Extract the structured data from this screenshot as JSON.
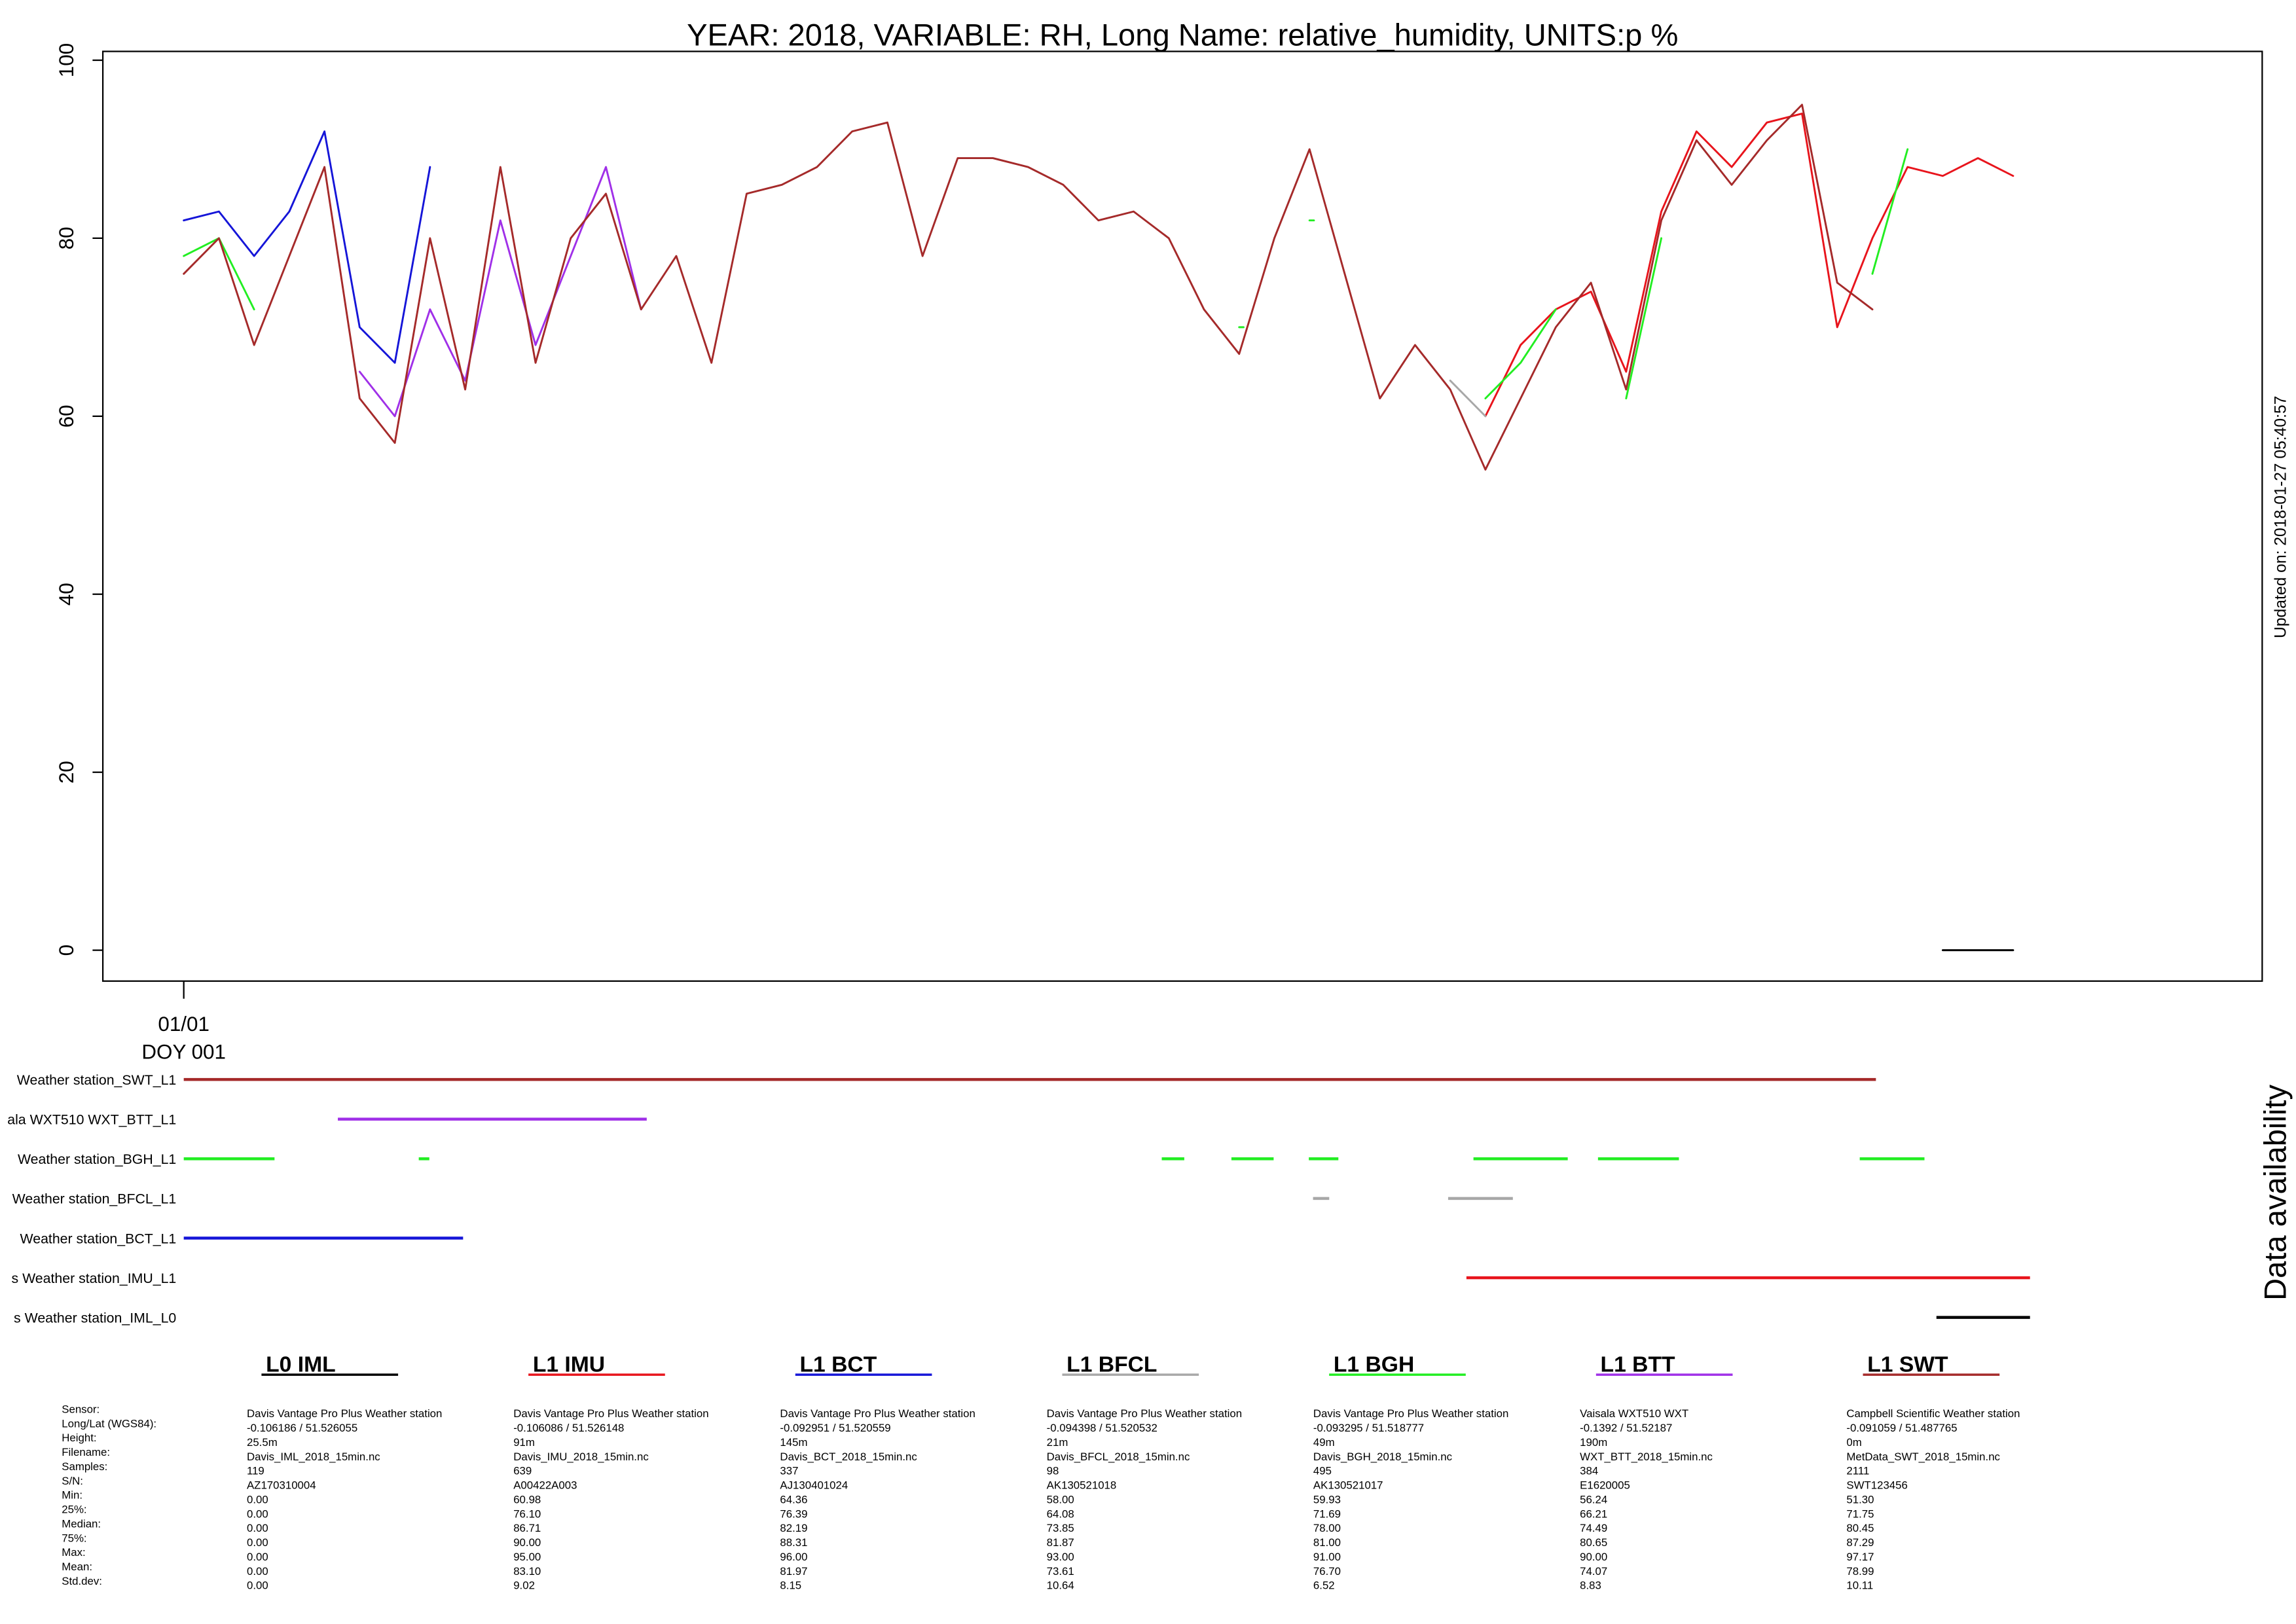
{
  "chart_data": [
    {
      "type": "line",
      "title": "YEAR: 2018, VARIABLE: RH, Long Name: relative_humidity, UNITS:p %",
      "side_note": "Updated on: 2018-01-27 05:40:57",
      "xlim": [
        -0.15,
        30.54
      ],
      "ylim": [
        -3.47,
        100.99
      ],
      "xticks": [
        {
          "value": 1,
          "label": "01/01",
          "sublabel": "DOY 001"
        }
      ],
      "yticks": [
        0,
        20,
        40,
        60,
        80,
        100
      ],
      "x": [
        1,
        1.5,
        2,
        2.5,
        3,
        3.5,
        4,
        4.5,
        5,
        5.5,
        6,
        6.5,
        7,
        7.5,
        8,
        8.5,
        9,
        9.5,
        10,
        10.5,
        11,
        11.5,
        12,
        12.5,
        13,
        13.5,
        14,
        14.5,
        15,
        15.5,
        16,
        16.5,
        17,
        17.5,
        18,
        18.5,
        19,
        19.5,
        20,
        20.5,
        21,
        21.5,
        22,
        22.5,
        23,
        23.5,
        24,
        24.5,
        25,
        25.5,
        26,
        26.5,
        27
      ],
      "series": [
        {
          "name": "L0 IML",
          "color": "#000000",
          "values": [
            null,
            null,
            null,
            null,
            null,
            null,
            null,
            null,
            null,
            null,
            null,
            null,
            null,
            null,
            null,
            null,
            null,
            null,
            null,
            null,
            null,
            null,
            null,
            null,
            null,
            null,
            null,
            null,
            null,
            null,
            null,
            null,
            null,
            null,
            null,
            null,
            null,
            null,
            null,
            null,
            null,
            null,
            null,
            null,
            null,
            null,
            null,
            null,
            null,
            null,
            0,
            0,
            0
          ]
        },
        {
          "name": "L1 IMU",
          "color": "#e8141c",
          "values": [
            null,
            null,
            null,
            null,
            null,
            null,
            null,
            null,
            null,
            null,
            null,
            null,
            null,
            null,
            null,
            null,
            null,
            null,
            null,
            null,
            null,
            null,
            null,
            null,
            null,
            null,
            null,
            null,
            null,
            null,
            null,
            null,
            null,
            null,
            null,
            null,
            null,
            60,
            68,
            72,
            74,
            65,
            83,
            92,
            88,
            93,
            94,
            70,
            80,
            88,
            87,
            89,
            87
          ]
        },
        {
          "name": "L1 BCT",
          "color": "#1515d8",
          "values": [
            82,
            83,
            78,
            83,
            92,
            70,
            66,
            88,
            null,
            null,
            null,
            null,
            null,
            null,
            null,
            null,
            null,
            null,
            null,
            null,
            null,
            null,
            null,
            null,
            null,
            null,
            null,
            null,
            null,
            null,
            null,
            null,
            null,
            null,
            null,
            null,
            null,
            null,
            null,
            null,
            null,
            null,
            null,
            null,
            null,
            null,
            null,
            null,
            null,
            null,
            null,
            null,
            null
          ]
        },
        {
          "name": "L1 BFCL",
          "color": "#a8a8a8",
          "values": [
            null,
            null,
            null,
            null,
            null,
            null,
            null,
            null,
            null,
            null,
            null,
            null,
            null,
            null,
            null,
            null,
            null,
            null,
            null,
            null,
            null,
            null,
            null,
            null,
            null,
            null,
            null,
            null,
            null,
            null,
            null,
            null,
            null,
            null,
            null,
            null,
            64,
            60,
            null,
            null,
            null,
            null,
            null,
            null,
            null,
            null,
            null,
            null,
            null,
            null,
            null,
            null,
            null
          ]
        },
        {
          "name": "L1 BGH",
          "color": "#22ee22",
          "values": [
            78,
            80,
            72,
            null,
            null,
            null,
            null,
            null,
            null,
            null,
            null,
            null,
            null,
            null,
            null,
            null,
            null,
            null,
            null,
            null,
            null,
            null,
            null,
            null,
            null,
            null,
            null,
            null,
            null,
            null,
            70,
            null,
            82,
            null,
            null,
            null,
            null,
            62,
            66,
            72,
            null,
            62,
            80,
            null,
            null,
            null,
            null,
            null,
            76,
            90,
            null,
            null,
            null
          ]
        },
        {
          "name": "L1 BTT",
          "color": "#a030e8",
          "values": [
            null,
            null,
            null,
            null,
            null,
            65,
            60,
            72,
            64,
            82,
            68,
            78,
            88,
            72,
            null,
            null,
            null,
            null,
            null,
            null,
            null,
            null,
            null,
            null,
            null,
            null,
            null,
            null,
            null,
            null,
            null,
            null,
            null,
            null,
            null,
            null,
            null,
            null,
            null,
            null,
            null,
            null,
            null,
            null,
            null,
            null,
            null,
            null,
            null,
            null,
            null,
            null,
            null
          ]
        },
        {
          "name": "L1 SWT",
          "color": "#a52a2a",
          "values": [
            76,
            80,
            68,
            78,
            88,
            62,
            57,
            80,
            63,
            88,
            66,
            80,
            85,
            72,
            78,
            66,
            85,
            86,
            88,
            92,
            93,
            78,
            89,
            89,
            88,
            86,
            82,
            83,
            80,
            72,
            67,
            80,
            90,
            76,
            62,
            68,
            63,
            54,
            62,
            70,
            75,
            63,
            82,
            91,
            86,
            91,
            95,
            75,
            72,
            null,
            null,
            null,
            null
          ]
        }
      ]
    },
    {
      "type": "timeline",
      "title": "Data availability",
      "xlim": [
        -0.15,
        30.54
      ],
      "rows": [
        {
          "label": "Weather station_SWT_L1",
          "color": "#a52a2a",
          "segments": [
            [
              1,
              25.05
            ]
          ]
        },
        {
          "label": "ala WXT510 WXT_BTT_L1",
          "color": "#a030e8",
          "segments": [
            [
              3.19,
              7.58
            ]
          ]
        },
        {
          "label": "Weather station_BGH_L1",
          "color": "#22ee22",
          "segments": [
            [
              1,
              2.29
            ],
            [
              4.34,
              4.49
            ],
            [
              14.9,
              15.22
            ],
            [
              15.89,
              16.49
            ],
            [
              16.99,
              17.41
            ],
            [
              19.33,
              20.67
            ],
            [
              21.1,
              22.25
            ],
            [
              24.82,
              25.74
            ]
          ]
        },
        {
          "label": "Weather station_BFCL_L1",
          "color": "#a8a8a8",
          "segments": [
            [
              17.05,
              17.28
            ],
            [
              18.97,
              19.89
            ]
          ]
        },
        {
          "label": "Weather station_BCT_L1",
          "color": "#1515d8",
          "segments": [
            [
              1,
              4.97
            ]
          ]
        },
        {
          "label": "s Weather station_IMU_L1",
          "color": "#e8141c",
          "segments": [
            [
              19.23,
              27.24
            ]
          ]
        },
        {
          "label": "s Weather station_IML_L0",
          "color": "#000000",
          "segments": [
            [
              25.91,
              27.24
            ]
          ]
        }
      ]
    }
  ],
  "stats_table": {
    "row_labels": [
      "Sensor:",
      "Long/Lat (WGS84):",
      "Height:",
      "Filename:",
      "Samples:",
      "S/N:",
      "Min:",
      "25%:",
      "Median:",
      "75%:",
      "Max:",
      "Mean:",
      "Std.dev:"
    ],
    "columns": [
      [
        "Davis Vantage Pro Plus Weather station",
        "-0.106186 / 51.526055",
        "25.5m",
        "Davis_IML_2018_15min.nc",
        "119",
        "AZ170310004",
        "0.00",
        "0.00",
        "0.00",
        "0.00",
        "0.00",
        "0.00",
        "0.00"
      ],
      [
        "Davis Vantage Pro Plus Weather station",
        "-0.106086 / 51.526148",
        "91m",
        "Davis_IMU_2018_15min.nc",
        "639",
        "A00422A003",
        "60.98",
        "76.10",
        "86.71",
        "90.00",
        "95.00",
        "83.10",
        "9.02"
      ],
      [
        "Davis Vantage Pro Plus Weather station",
        "-0.092951 / 51.520559",
        "145m",
        "Davis_BCT_2018_15min.nc",
        "337",
        "AJ130401024",
        "64.36",
        "76.39",
        "82.19",
        "88.31",
        "96.00",
        "81.97",
        "8.15"
      ],
      [
        "Davis Vantage Pro Plus Weather station",
        "-0.094398 / 51.520532",
        "21m",
        "Davis_BFCL_2018_15min.nc",
        "98",
        "AK130521018",
        "58.00",
        "64.08",
        "73.85",
        "81.87",
        "93.00",
        "73.61",
        "10.64"
      ],
      [
        "Davis Vantage Pro Plus Weather station",
        "-0.093295 / 51.518777",
        "49m",
        "Davis_BGH_2018_15min.nc",
        "495",
        "AK130521017",
        "59.93",
        "71.69",
        "78.00",
        "81.00",
        "91.00",
        "76.70",
        "6.52"
      ],
      [
        "Vaisala WXT510 WXT",
        "-0.1392 / 51.52187",
        "190m",
        "WXT_BTT_2018_15min.nc",
        "384",
        "E1620005",
        "56.24",
        "66.21",
        "74.49",
        "80.65",
        "90.00",
        "74.07",
        "8.83"
      ],
      [
        "Campbell Scientific  Weather station",
        "-0.091059 / 51.487765",
        "0m",
        "MetData_SWT_2018_15min.nc",
        "2111",
        "SWT123456",
        "51.30",
        "71.75",
        "80.45",
        "87.29",
        "97.17",
        "78.99",
        "10.11"
      ]
    ]
  }
}
